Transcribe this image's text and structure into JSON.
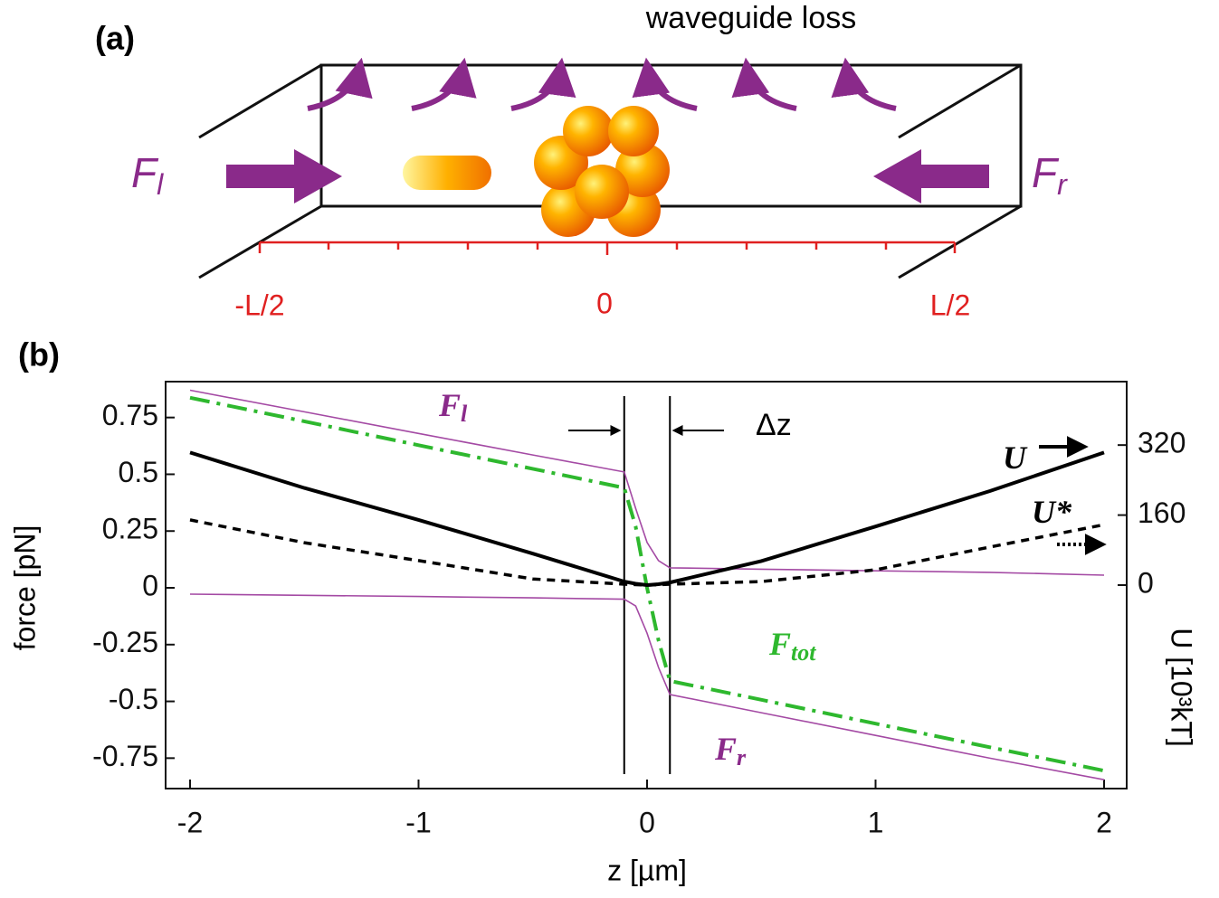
{
  "diagram": {
    "panel_label": "(a)",
    "loss_label": "waveguide loss",
    "force_left": {
      "text": "F",
      "sub": "l"
    },
    "force_right": {
      "text": "F",
      "sub": "r"
    },
    "axis_labels": [
      "-L/2",
      "0",
      "L/2"
    ]
  },
  "chart_data": {
    "type": "line",
    "panel_label": "(b)",
    "x_label": "z [µm]",
    "y_label": "force [pN]",
    "y2_label": "U [10³kT]",
    "x": [
      -2,
      -1.5,
      -1,
      -0.5,
      -0.1,
      -0.05,
      0,
      0.05,
      0.1,
      0.5,
      1,
      1.5,
      2
    ],
    "xlim": [
      -2.107,
      2.099
    ],
    "xticks": [
      -2,
      -1,
      0,
      1,
      2
    ],
    "ylim": [
      -0.884,
      0.908
    ],
    "yticks": [
      0.75,
      0.5,
      0.25,
      0,
      -0.25,
      -0.5,
      -0.75
    ],
    "y2lim": [
      -465,
      465
    ],
    "y2ticks": [
      320,
      160,
      0
    ],
    "markers": [
      -0.1,
      0.1
    ],
    "series": [
      {
        "name": {
          "text": "F",
          "sub": "l"
        },
        "color": "#a44aa4",
        "style": "solid",
        "width": 1.6,
        "values": [
          0.87,
          0.775,
          0.68,
          0.585,
          0.51,
          0.35,
          0.2,
          0.12,
          0.088,
          0.082,
          0.075,
          0.068,
          0.056
        ]
      },
      {
        "name": {
          "text": "F",
          "sub": "r"
        },
        "color": "#a44aa4",
        "style": "solid",
        "width": 1.6,
        "values": [
          -0.028,
          -0.033,
          -0.038,
          -0.044,
          -0.05,
          -0.08,
          -0.2,
          -0.35,
          -0.47,
          -0.55,
          -0.65,
          -0.75,
          -0.845
        ]
      },
      {
        "name": {
          "text": "F",
          "sub": "tot"
        },
        "color": "#2eb82e",
        "style": "dashdot",
        "width": 4,
        "values": [
          0.837,
          0.733,
          0.628,
          0.524,
          0.44,
          0.27,
          0,
          -0.23,
          -0.41,
          -0.493,
          -0.598,
          -0.702,
          -0.805
        ]
      },
      {
        "name": {
          "text": "U",
          "sub": ""
        },
        "color": "#000000",
        "style": "solid",
        "width": 4,
        "axis": "y2",
        "values": [
          303,
          222,
          149,
          72,
          8,
          3,
          0,
          2,
          6,
          55,
          134,
          215,
          303
        ]
      },
      {
        "name": {
          "text": "U*",
          "sub": ""
        },
        "color": "#000000",
        "style": "dashed",
        "width": 3.5,
        "axis": "y2",
        "values": [
          149,
          97,
          56,
          14,
          2,
          1,
          0,
          1,
          2,
          8,
          35,
          87,
          138
        ]
      }
    ],
    "delta_label": "Δz"
  }
}
